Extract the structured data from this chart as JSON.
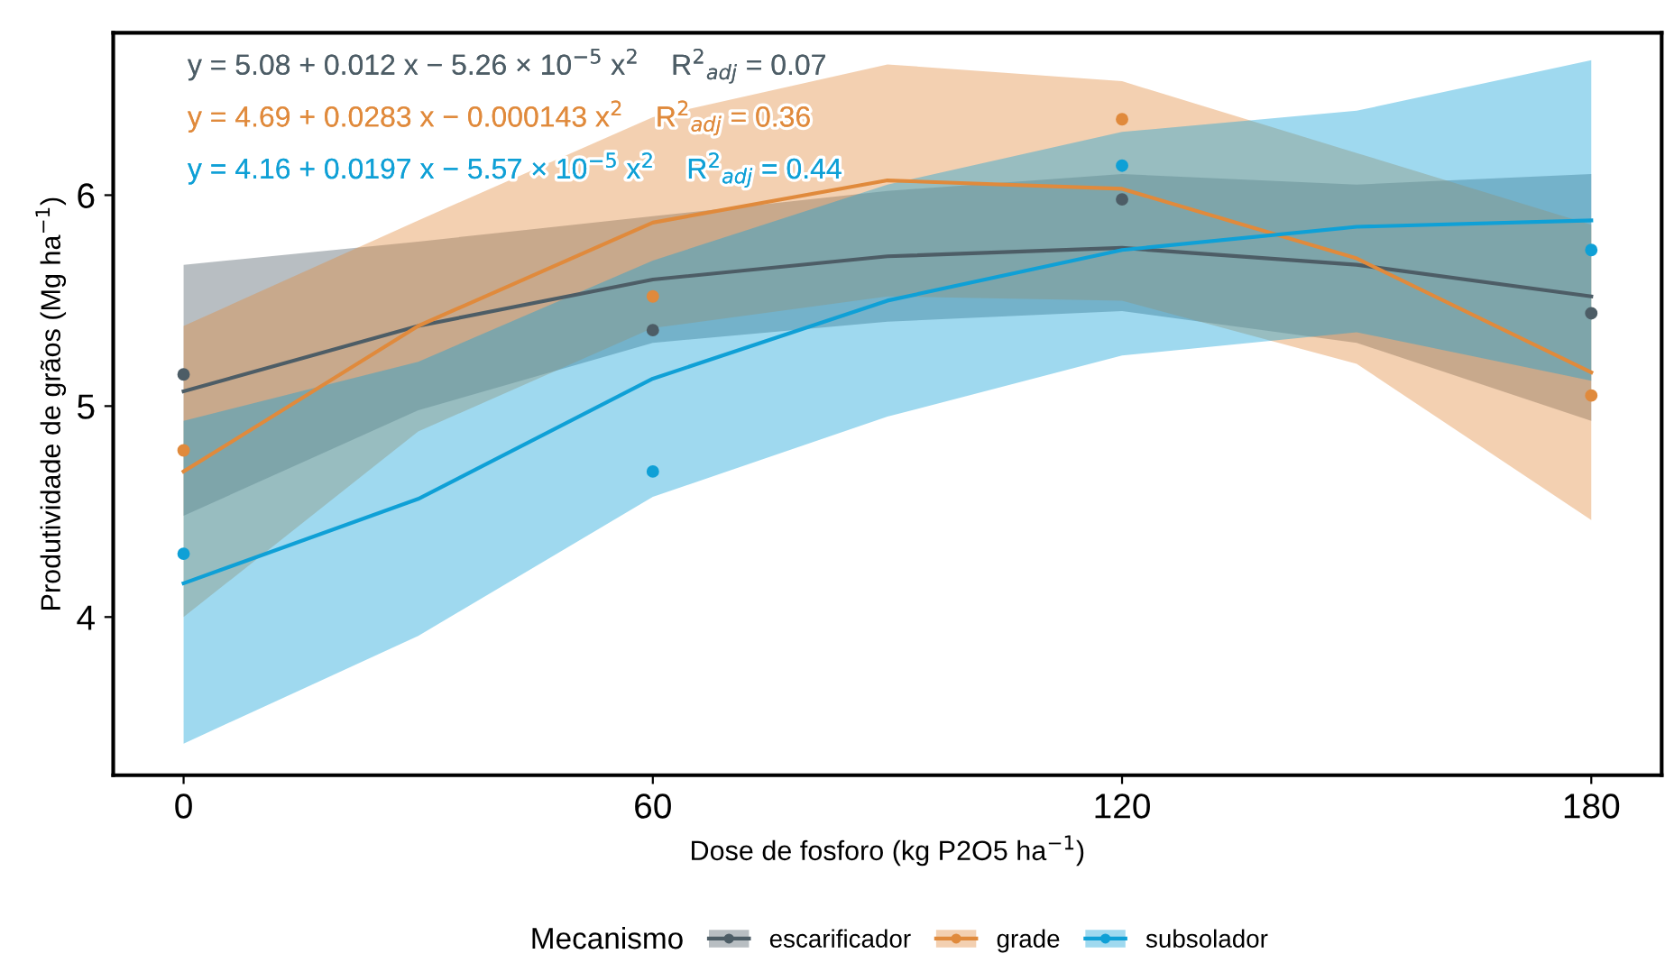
{
  "chart_data": {
    "type": "line",
    "xlabel": "Dose de fosforo (kg P2O5 ha$^{−1}$)",
    "ylabel": "Produtividade de grãos (Mg ha$^{−1}$)",
    "legend_title": "Mecanismo",
    "legend": "bottom",
    "grid": false,
    "xlim": [
      -9,
      189
    ],
    "xticks": [
      0,
      60,
      120,
      180
    ],
    "ylim": [
      3.25,
      6.77
    ],
    "yticks": [
      4,
      5,
      6
    ],
    "annotations": [
      "y = 5.08 + 0.012 x − 5.26 × 10$^{−5}$ x$^{2}$    R$^{2}$$_{adj}$ = 0.07",
      "y = 4.69 + 0.0283 x − 0.000143 x$^{2}$    R$^{2}$$_{adj}$ = 0.36",
      "y = 4.16 + 0.0197 x − 5.57 × 10$^{−5}$ x$^{2}$    R$^{2}$$_{adj}$ = 0.44"
    ],
    "series": [
      {
        "name": "escarificador",
        "color": "#4d5d66",
        "x": [
          0,
          30,
          60,
          90,
          120,
          150,
          180
        ],
        "values": [
          5.07,
          5.38,
          5.6,
          5.71,
          5.75,
          5.67,
          5.52
        ],
        "lower": [
          4.48,
          4.98,
          5.3,
          5.4,
          5.45,
          5.3,
          4.93
        ],
        "upper": [
          5.67,
          5.78,
          5.9,
          6.02,
          6.1,
          6.05,
          6.1
        ]
      },
      {
        "name": "grade",
        "color": "#e08a3c",
        "x": [
          0,
          30,
          60,
          90,
          120,
          150,
          180
        ],
        "values": [
          4.69,
          5.38,
          5.87,
          6.07,
          6.03,
          5.7,
          5.16
        ],
        "lower": [
          4.0,
          4.88,
          5.37,
          5.52,
          5.5,
          5.2,
          4.46
        ],
        "upper": [
          5.38,
          5.88,
          6.37,
          6.62,
          6.54,
          6.2,
          5.86
        ]
      },
      {
        "name": "subsolador",
        "color": "#0fa0d6",
        "x": [
          0,
          30,
          60,
          90,
          120,
          150,
          180
        ],
        "values": [
          4.16,
          4.56,
          5.13,
          5.5,
          5.74,
          5.85,
          5.88
        ],
        "lower": [
          3.4,
          3.91,
          4.57,
          4.95,
          5.24,
          5.35,
          5.12
        ],
        "upper": [
          4.93,
          5.21,
          5.69,
          6.05,
          6.3,
          6.4,
          6.64
        ]
      },
      {
        "type": "scatter",
        "marker": "circle",
        "color": "#4d5d66",
        "x": [
          0,
          60,
          120,
          180
        ],
        "values": [
          5.15,
          5.36,
          5.98,
          5.44
        ]
      },
      {
        "type": "scatter",
        "marker": "circle",
        "color": "#e08a3c",
        "x": [
          0,
          60,
          120,
          180
        ],
        "values": [
          4.79,
          5.52,
          6.36,
          5.05
        ]
      },
      {
        "type": "scatter",
        "marker": "circle",
        "color": "#0fa0d6",
        "x": [
          0,
          60,
          120,
          180
        ],
        "values": [
          4.3,
          4.69,
          6.14,
          5.74
        ]
      }
    ]
  }
}
